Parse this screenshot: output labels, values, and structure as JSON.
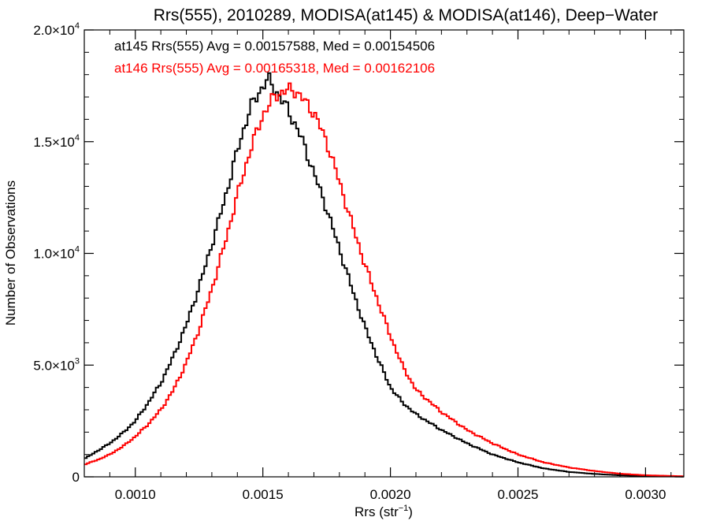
{
  "chart_data": {
    "type": "line",
    "title": "Rrs(555), 2010289, MODISA(at145) & MODISA(at146), Deep−Water",
    "xlabel": "Rrs (str",
    "xlabel_sup": "−1",
    "xlabel_end": ")",
    "ylabel": "Number of Observations",
    "xlim": [
      0.0008,
      0.00315
    ],
    "ylim": [
      0,
      20000
    ],
    "x_ticks": [
      {
        "value": 0.001,
        "label": "0.0010"
      },
      {
        "value": 0.0015,
        "label": "0.0015"
      },
      {
        "value": 0.002,
        "label": "0.0020"
      },
      {
        "value": 0.0025,
        "label": "0.0025"
      },
      {
        "value": 0.003,
        "label": "0.0030"
      }
    ],
    "y_ticks": [
      {
        "value": 0,
        "mant": "0",
        "exp": ""
      },
      {
        "value": 5000,
        "mant": "5.0×10",
        "exp": "3"
      },
      {
        "value": 10000,
        "mant": "1.0×10",
        "exp": "4"
      },
      {
        "value": 15000,
        "mant": "1.5×10",
        "exp": "4"
      },
      {
        "value": 20000,
        "mant": "2.0×10",
        "exp": "4"
      }
    ],
    "annotations": [
      {
        "text": "at145 Rrs(555) Avg = 0.00157588, Med = 0.00154506",
        "color": "#000000"
      },
      {
        "text": "at146 Rrs(555) Avg = 0.00165318, Med = 0.00162106",
        "color": "#ff0000"
      }
    ],
    "series": [
      {
        "color": "#000000",
        "x": [
          0.0008,
          0.00085,
          0.0009,
          0.00095,
          0.001,
          0.00105,
          0.0011,
          0.00115,
          0.0012,
          0.00125,
          0.0013,
          0.00135,
          0.0014,
          0.00145,
          0.0015,
          0.00152,
          0.00155,
          0.0016,
          0.00165,
          0.0017,
          0.00175,
          0.0018,
          0.00185,
          0.0019,
          0.00195,
          0.002,
          0.00205,
          0.0021,
          0.0022,
          0.0023,
          0.0024,
          0.0025,
          0.0026,
          0.0027,
          0.0028,
          0.0029,
          0.003,
          0.00315
        ],
        "y": [
          800,
          1150,
          1500,
          1950,
          2500,
          3300,
          4200,
          5400,
          6800,
          8500,
          10400,
          12400,
          14600,
          16500,
          17500,
          17800,
          17300,
          16400,
          15200,
          13600,
          12000,
          10200,
          8400,
          6700,
          5300,
          4000,
          3300,
          2800,
          2100,
          1500,
          1000,
          650,
          380,
          220,
          130,
          70,
          35,
          10
        ]
      },
      {
        "color": "#ff0000",
        "x": [
          0.0008,
          0.00085,
          0.0009,
          0.00095,
          0.001,
          0.00105,
          0.0011,
          0.00115,
          0.0012,
          0.00125,
          0.0013,
          0.00135,
          0.0014,
          0.00145,
          0.0015,
          0.00155,
          0.0016,
          0.00162,
          0.00165,
          0.0017,
          0.00175,
          0.0018,
          0.00185,
          0.0019,
          0.00195,
          0.002,
          0.00205,
          0.0021,
          0.0022,
          0.0023,
          0.0024,
          0.0025,
          0.0026,
          0.0027,
          0.0028,
          0.0029,
          0.003,
          0.00315
        ],
        "y": [
          550,
          750,
          1000,
          1350,
          1800,
          2350,
          3000,
          3900,
          5100,
          6600,
          8400,
          10400,
          12600,
          14600,
          16200,
          17100,
          17300,
          17350,
          17000,
          16300,
          15000,
          13200,
          11300,
          9500,
          7900,
          6300,
          4900,
          3900,
          2900,
          2100,
          1500,
          1000,
          650,
          420,
          260,
          140,
          70,
          25
        ]
      }
    ]
  }
}
